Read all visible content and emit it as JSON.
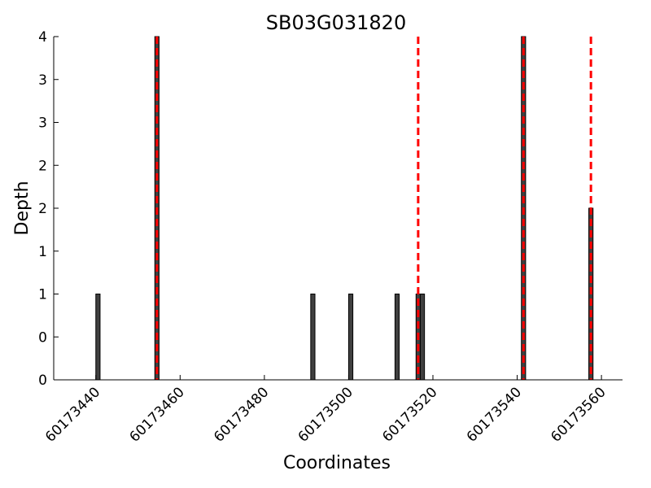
{
  "chart_data": {
    "type": "bar",
    "title": "SB03G031820",
    "xlabel": "Coordinates",
    "ylabel": "Depth",
    "xlim": [
      60173430,
      60173565
    ],
    "ylim": [
      0,
      4
    ],
    "x_ticks": [
      60173440,
      60173460,
      60173480,
      60173500,
      60173520,
      60173540,
      60173560
    ],
    "y_tick_values": [
      0,
      0.5,
      1,
      1.5,
      2,
      2.5,
      3,
      3.5,
      4
    ],
    "y_tick_labels": [
      "0",
      "0",
      "1",
      "1",
      "2",
      "2",
      "3",
      "3",
      "4"
    ],
    "bar_width": 1,
    "bars": [
      {
        "x": 60173440,
        "value": 1
      },
      {
        "x": 60173454,
        "value": 4
      },
      {
        "x": 60173491,
        "value": 1
      },
      {
        "x": 60173500,
        "value": 1
      },
      {
        "x": 60173511,
        "value": 1
      },
      {
        "x": 60173516,
        "value": 1
      },
      {
        "x": 60173517,
        "value": 1
      },
      {
        "x": 60173541,
        "value": 4
      },
      {
        "x": 60173557,
        "value": 2
      }
    ],
    "markers": [
      60173454.5,
      60173516.5,
      60173541.5,
      60173557.5
    ],
    "grid": false,
    "colors": {
      "bar_fill": "#404040",
      "bar_edge": "#000000",
      "marker": "#ff0000"
    }
  }
}
